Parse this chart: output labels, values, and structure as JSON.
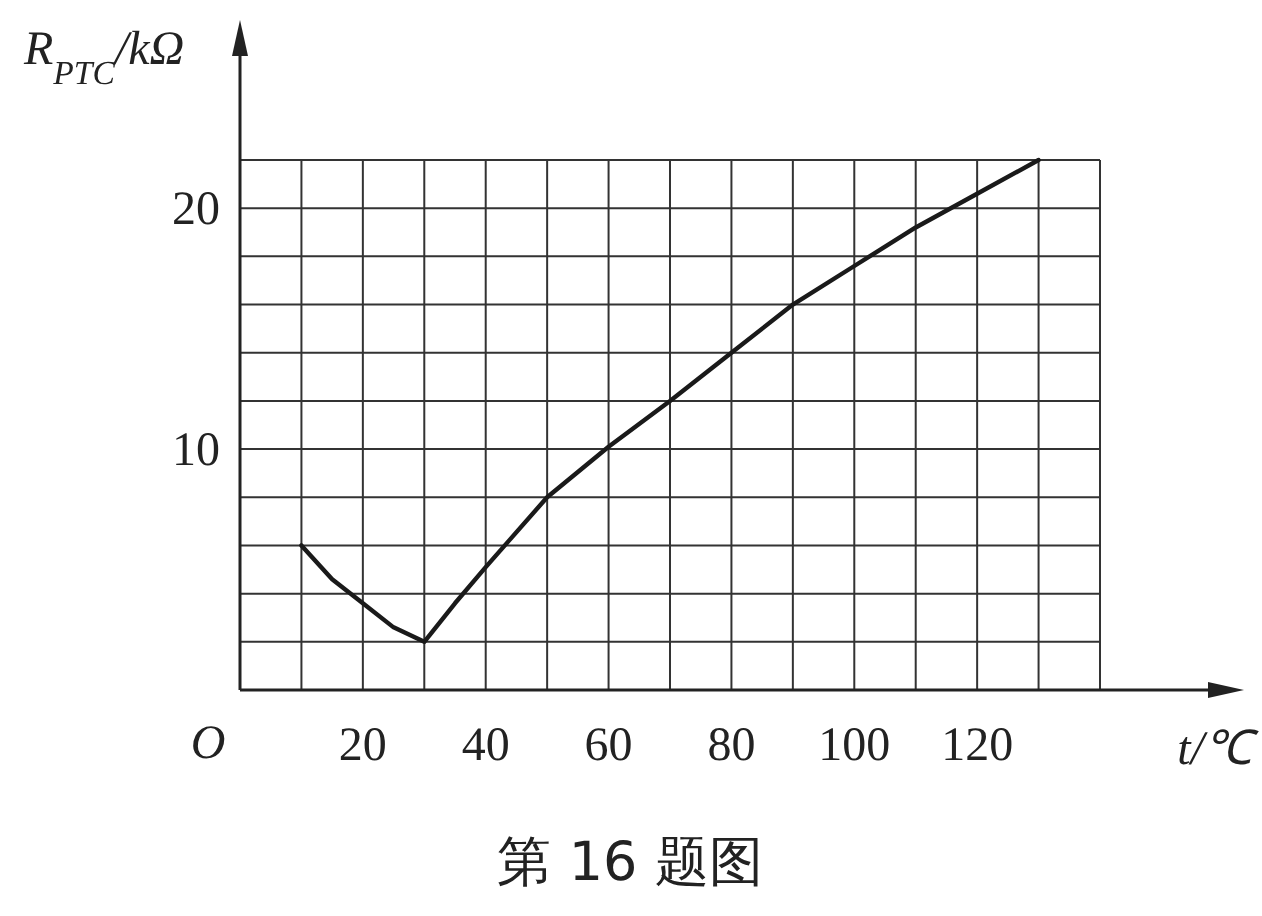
{
  "chart_data": {
    "type": "line",
    "title": "第 16 题图",
    "xlabel": "t/℃",
    "ylabel": "R$_{PTC}$/kΩ",
    "x": [
      10,
      15,
      20,
      25,
      30,
      35,
      40,
      50,
      60,
      70,
      80,
      90,
      100,
      110,
      120,
      130
    ],
    "series": [
      {
        "color": "#1a1a1a",
        "values": [
          6,
          4.6,
          3.6,
          2.6,
          2,
          3.6,
          5.1,
          8,
          10.1,
          12,
          14,
          16,
          17.6,
          19.2,
          20.6,
          22
        ]
      }
    ],
    "xlim": [
      0,
      140
    ],
    "ylim": [
      0,
      22
    ],
    "annotations": [
      "O"
    ],
    "xticks": [
      {
        "value": 0,
        "label": null
      },
      {
        "value": 10,
        "label": null
      },
      20,
      {
        "value": 30,
        "label": null
      },
      40,
      {
        "value": 50,
        "label": null
      },
      60,
      {
        "value": 70,
        "label": null
      },
      80,
      {
        "value": 90,
        "label": null
      },
      100,
      {
        "value": 110,
        "label": null
      },
      120,
      {
        "value": 130,
        "label": null
      },
      {
        "value": 140,
        "label": null
      }
    ],
    "yticks": [
      {
        "value": 2,
        "label": null
      },
      {
        "value": 4,
        "label": null
      },
      {
        "value": 6,
        "label": null
      },
      {
        "value": 8,
        "label": null
      },
      10,
      {
        "value": 12,
        "label": null
      },
      {
        "value": 14,
        "label": null
      },
      {
        "value": 16,
        "label": null
      },
      {
        "value": 18,
        "label": null
      },
      20,
      {
        "value": 22,
        "label": null
      }
    ],
    "grid": true,
    "marker": "none",
    "line_style": "solid"
  }
}
